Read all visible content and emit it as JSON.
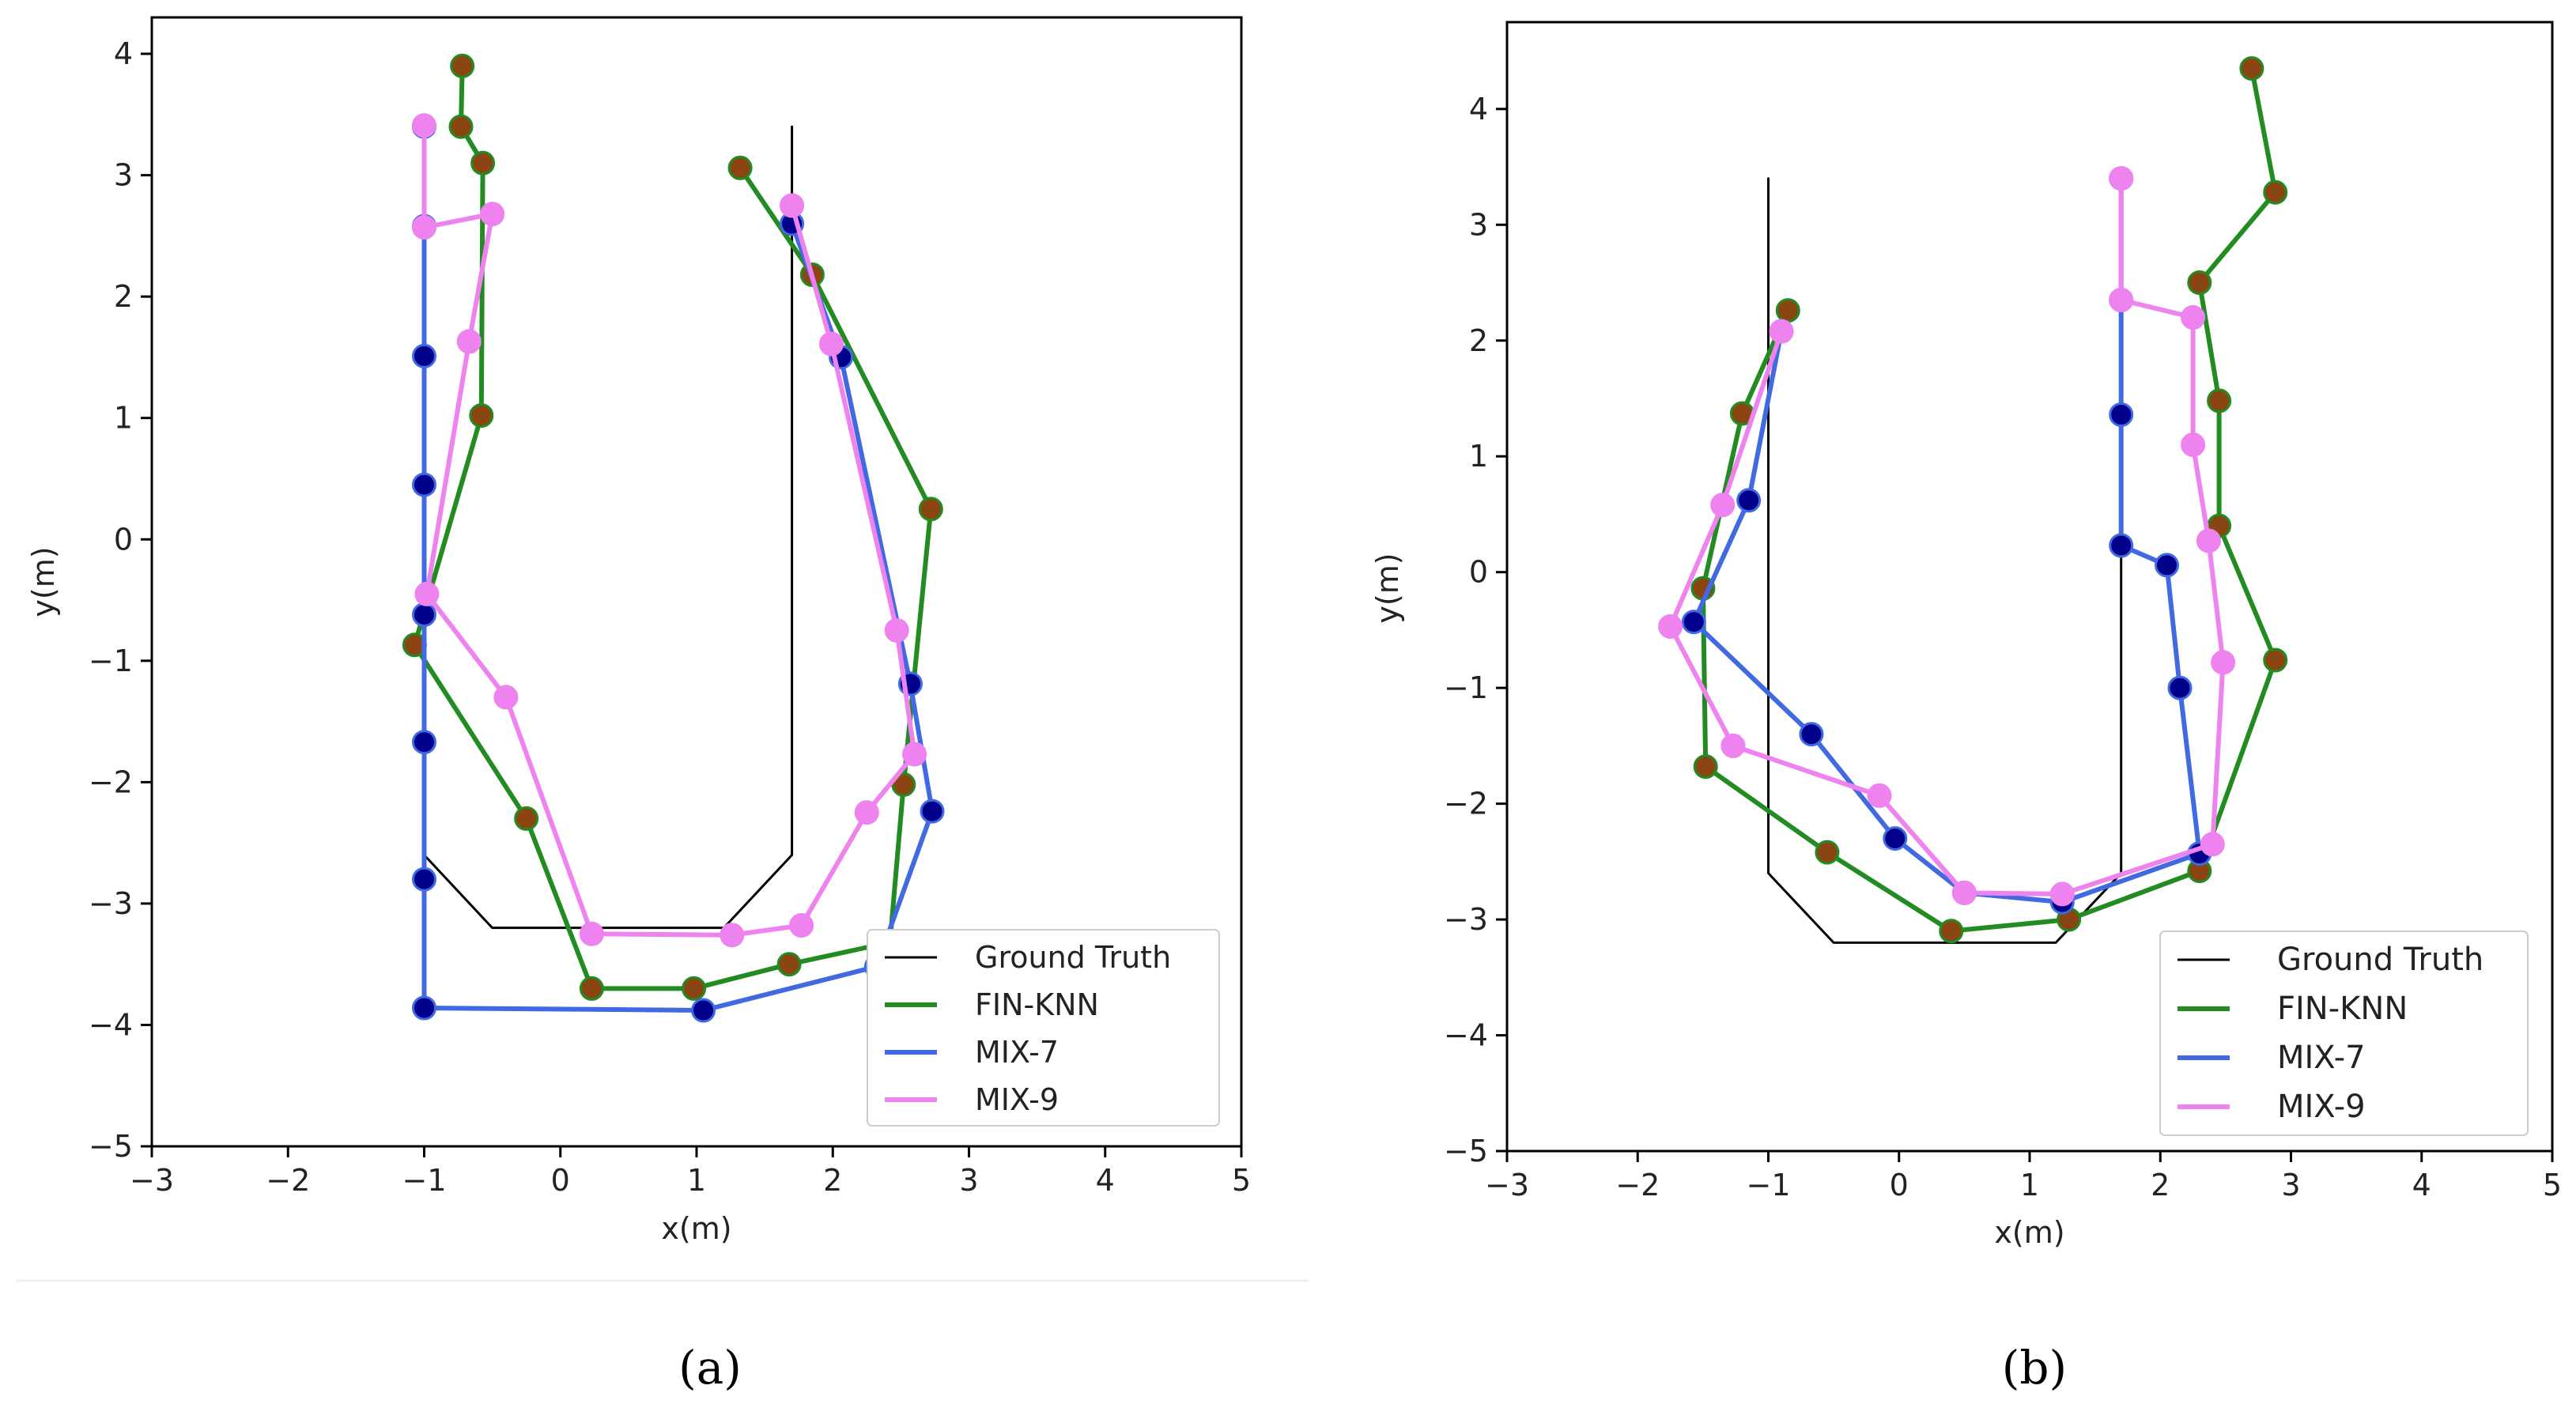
{
  "colors": {
    "ground_truth": "#000000",
    "fin_knn": "#228B22",
    "fin_knn_marker": "#8B4513",
    "mix7": "#4169E1",
    "mix7_marker": "#00008B",
    "mix9": "#EE82EE"
  },
  "chart_data": [
    {
      "type": "line",
      "panel_label": "(a)",
      "xlabel": "x(m)",
      "ylabel": "y(m)",
      "xlim": [
        -3,
        5
      ],
      "ylim": [
        -5,
        4.3
      ],
      "xticks": [
        -3,
        -2,
        -1,
        0,
        1,
        2,
        3,
        4,
        5
      ],
      "yticks": [
        -5,
        -4,
        -3,
        -2,
        -1,
        0,
        1,
        2,
        3,
        4
      ],
      "xtick_labels": [
        "−3",
        "−2",
        "−1",
        "0",
        "1",
        "2",
        "3",
        "4",
        "5"
      ],
      "ytick_labels": [
        "−5",
        "−4",
        "−3",
        "−2",
        "−1",
        "0",
        "1",
        "2",
        "3",
        "4"
      ],
      "legend_position": "bottom-right",
      "series": [
        {
          "name": "Ground Truth",
          "key": "gt",
          "markers": false,
          "points": [
            [
              -1,
              -2.6
            ],
            [
              -0.5,
              -3.2
            ],
            [
              1.2,
              -3.2
            ],
            [
              1.7,
              -2.6
            ],
            [
              1.7,
              3.4
            ]
          ]
        },
        {
          "name": "FIN-KNN",
          "key": "fin",
          "points": [
            [
              -0.72,
              3.9
            ],
            [
              -0.73,
              3.4
            ],
            [
              -0.57,
              3.1
            ],
            [
              -0.58,
              1.02
            ],
            [
              -1.07,
              -0.87
            ],
            [
              -0.25,
              -2.3
            ],
            [
              0.23,
              -3.7
            ],
            [
              0.98,
              -3.7
            ],
            [
              1.68,
              -3.5
            ],
            [
              2.42,
              -3.32
            ],
            [
              2.52,
              -2.02
            ],
            [
              2.72,
              0.25
            ],
            [
              1.85,
              2.18
            ],
            [
              1.32,
              3.06
            ]
          ]
        },
        {
          "name": "MIX-7",
          "key": "mix7",
          "points": [
            [
              -1,
              3.4
            ],
            [
              -1,
              2.58
            ],
            [
              -1,
              1.51
            ],
            [
              -1,
              0.45
            ],
            [
              -1,
              -0.62
            ],
            [
              -1,
              -1.67
            ],
            [
              -1,
              -2.8
            ],
            [
              -1,
              -3.86
            ],
            [
              1.05,
              -3.88
            ],
            [
              2.32,
              -3.52
            ],
            [
              2.73,
              -2.24
            ],
            [
              2.57,
              -1.19
            ],
            [
              2.06,
              1.5
            ],
            [
              1.7,
              2.6
            ]
          ]
        },
        {
          "name": "MIX-9",
          "key": "mix9",
          "points": [
            [
              -1,
              3.41
            ],
            [
              -1,
              2.57
            ],
            [
              -0.5,
              2.68
            ],
            [
              -0.67,
              1.63
            ],
            [
              -0.98,
              -0.45
            ],
            [
              -0.4,
              -1.3
            ],
            [
              0.23,
              -3.25
            ],
            [
              1.26,
              -3.26
            ],
            [
              1.77,
              -3.18
            ],
            [
              2.25,
              -2.25
            ],
            [
              2.6,
              -1.77
            ],
            [
              2.47,
              -0.75
            ],
            [
              1.99,
              1.61
            ],
            [
              1.7,
              2.75
            ]
          ]
        }
      ]
    },
    {
      "type": "line",
      "panel_label": "(b)",
      "xlabel": "x(m)",
      "ylabel": "y(m)",
      "xlim": [
        -3,
        5
      ],
      "ylim": [
        -5,
        4.75
      ],
      "xticks": [
        -3,
        -2,
        -1,
        0,
        1,
        2,
        3,
        4,
        5
      ],
      "yticks": [
        -5,
        -4,
        -3,
        -2,
        -1,
        0,
        1,
        2,
        3,
        4
      ],
      "xtick_labels": [
        "−3",
        "−2",
        "−1",
        "0",
        "1",
        "2",
        "3",
        "4",
        "5"
      ],
      "ytick_labels": [
        "−5",
        "−4",
        "−3",
        "−2",
        "−1",
        "0",
        "1",
        "2",
        "3",
        "4"
      ],
      "legend_position": "bottom-right",
      "series": [
        {
          "name": "Ground Truth",
          "key": "gt",
          "markers": false,
          "points": [
            [
              -1,
              3.4
            ],
            [
              -1,
              -2.6
            ],
            [
              -0.5,
              -3.2
            ],
            [
              1.2,
              -3.2
            ],
            [
              1.7,
              -2.6
            ],
            [
              1.7,
              3.4
            ]
          ]
        },
        {
          "name": "FIN-KNN",
          "key": "fin",
          "points": [
            [
              -0.85,
              2.26
            ],
            [
              -1.2,
              1.37
            ],
            [
              -1.5,
              -0.14
            ],
            [
              -1.48,
              -1.68
            ],
            [
              -0.55,
              -2.42
            ],
            [
              0.4,
              -3.1
            ],
            [
              1.3,
              -3
            ],
            [
              2.3,
              -2.58
            ],
            [
              2.88,
              -0.76
            ],
            [
              2.45,
              0.4
            ],
            [
              2.45,
              1.48
            ],
            [
              2.3,
              2.5
            ],
            [
              2.88,
              3.28
            ],
            [
              2.7,
              4.35
            ]
          ]
        },
        {
          "name": "MIX-7",
          "key": "mix7",
          "points": [
            [
              -0.9,
              2.08
            ],
            [
              -1.15,
              0.62
            ],
            [
              -1.57,
              -0.43
            ],
            [
              -0.67,
              -1.4
            ],
            [
              -0.03,
              -2.3
            ],
            [
              0.5,
              -2.77
            ],
            [
              1.25,
              -2.85
            ],
            [
              2.3,
              -2.43
            ],
            [
              2.15,
              -1
            ],
            [
              2.05,
              0.06
            ],
            [
              1.7,
              0.23
            ],
            [
              1.7,
              1.36
            ],
            [
              1.7,
              2.35
            ],
            [
              1.7,
              3.4
            ]
          ]
        },
        {
          "name": "MIX-9",
          "key": "mix9",
          "points": [
            [
              -0.9,
              2.08
            ],
            [
              -1.35,
              0.58
            ],
            [
              -1.75,
              -0.47
            ],
            [
              -1.27,
              -1.5
            ],
            [
              -0.15,
              -1.93
            ],
            [
              0.5,
              -2.77
            ],
            [
              1.25,
              -2.78
            ],
            [
              2.4,
              -2.35
            ],
            [
              2.48,
              -0.78
            ],
            [
              2.37,
              0.27
            ],
            [
              2.25,
              1.1
            ],
            [
              2.25,
              2.2
            ],
            [
              1.7,
              2.35
            ],
            [
              1.7,
              3.4
            ]
          ]
        }
      ]
    }
  ]
}
